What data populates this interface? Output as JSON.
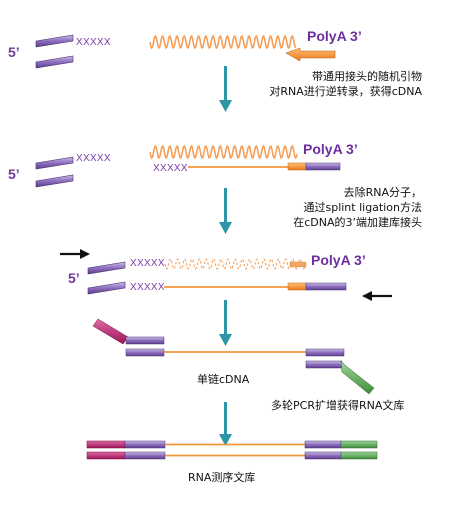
{
  "colors": {
    "purple_dark": "#6a4c93",
    "purple_light": "#b7a6d8",
    "orange_wave": "#f5a05a",
    "orange_line": "#f0963c",
    "orange_block": "#f07f1e",
    "magenta": "#b01a6a",
    "green": "#4f9c4a",
    "arrow_blue": "#2d95a6",
    "text_purple": "#6d2ea0"
  },
  "labels": {
    "five_prime": "5’",
    "polya": "PolyA 3’",
    "xxxxx": "XXXXX"
  },
  "steps": {
    "step1": {
      "line1": "带通用接头的随机引物",
      "line2": "对RNA进行逆转录，获得cDNA"
    },
    "step2": {
      "line1": "去除RNA分子，",
      "line2": "通过splint ligation方法",
      "line3": "在cDNA的3’端加建库接头"
    },
    "single_strand": "单链cDNA",
    "pcr": "多轮PCR扩增获得RNA文库",
    "library": "RNA测序文库"
  }
}
